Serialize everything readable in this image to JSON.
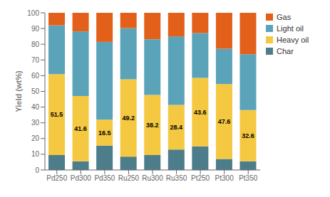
{
  "chart_data": {
    "type": "bar",
    "stacked": true,
    "grid": false,
    "legend": "upper right",
    "ylabel": "Yield (wt%)",
    "categories": [
      "Pd250",
      "Pd300",
      "Pd350",
      "Ru250",
      "Ru300",
      "Ru350",
      "Pt250",
      "Pt300",
      "Pt350"
    ],
    "series": [
      {
        "name": "Char",
        "color": "#4d7c8a",
        "values": [
          9.5,
          5.5,
          15.5,
          8.5,
          9.5,
          13.0,
          15.0,
          7.0,
          5.5
        ]
      },
      {
        "name": "Heavy oil",
        "color": "#f5c842",
        "data_labels": true,
        "values": [
          51.5,
          41.6,
          16.5,
          49.2,
          38.2,
          28.4,
          43.6,
          47.6,
          32.6
        ]
      },
      {
        "name": "Light oil",
        "color": "#5ba3b8",
        "values": [
          31.0,
          41.0,
          49.5,
          32.5,
          35.5,
          43.5,
          28.5,
          22.5,
          35.5
        ]
      },
      {
        "name": "Gas",
        "color": "#e2601a",
        "values": [
          8.0,
          11.9,
          18.5,
          9.8,
          16.8,
          15.1,
          12.9,
          22.9,
          26.4
        ]
      }
    ],
    "ylim": [
      0,
      100
    ],
    "yticks": [
      0,
      10,
      20,
      30,
      40,
      50,
      60,
      70,
      80,
      90,
      100
    ]
  }
}
